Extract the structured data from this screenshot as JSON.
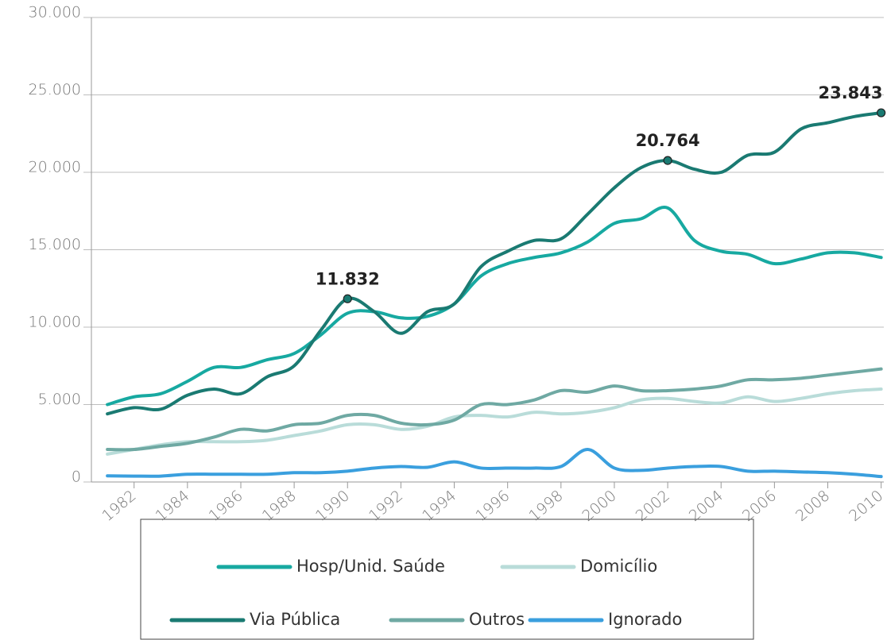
{
  "chart_data": {
    "type": "line",
    "x": [
      1981,
      1982,
      1983,
      1984,
      1985,
      1986,
      1987,
      1988,
      1989,
      1990,
      1991,
      1992,
      1993,
      1994,
      1995,
      1996,
      1997,
      1998,
      1999,
      2000,
      2001,
      2002,
      2003,
      2004,
      2005,
      2006,
      2007,
      2008,
      2009,
      2010
    ],
    "series": [
      {
        "name": "Hosp/Unid. Saúde",
        "color": "#17a9a1",
        "values": [
          5000,
          5500,
          5700,
          6500,
          7400,
          7400,
          7900,
          8300,
          9500,
          10900,
          11000,
          10600,
          10700,
          11500,
          13300,
          14100,
          14500,
          14800,
          15500,
          16700,
          17000,
          17700,
          15600,
          14900,
          14700,
          14100,
          14400,
          14800,
          14800,
          14500
        ]
      },
      {
        "name": "Domicílio",
        "color": "#b9dcd9",
        "values": [
          1800,
          2100,
          2400,
          2600,
          2600,
          2600,
          2700,
          3000,
          3300,
          3700,
          3700,
          3400,
          3600,
          4200,
          4300,
          4200,
          4500,
          4400,
          4500,
          4800,
          5300,
          5400,
          5200,
          5100,
          5500,
          5200,
          5400,
          5700,
          5900,
          6000
        ]
      },
      {
        "name": "Via Pública",
        "color": "#1a7a72",
        "values": [
          4400,
          4800,
          4700,
          5600,
          6000,
          5700,
          6800,
          7500,
          9800,
          11832,
          11000,
          9600,
          11000,
          11500,
          13900,
          14900,
          15600,
          15700,
          17300,
          19000,
          20300,
          20764,
          20200,
          20000,
          21100,
          21300,
          22800,
          23200,
          23600,
          23843
        ]
      },
      {
        "name": "Outros",
        "color": "#6fa9a3",
        "values": [
          2100,
          2100,
          2300,
          2500,
          2900,
          3400,
          3300,
          3700,
          3800,
          4300,
          4300,
          3800,
          3700,
          4000,
          5000,
          5000,
          5300,
          5900,
          5800,
          6200,
          5900,
          5900,
          6000,
          6200,
          6600,
          6600,
          6700,
          6900,
          7100,
          7300
        ]
      },
      {
        "name": "Ignorado",
        "color": "#3a9fde",
        "values": [
          400,
          380,
          380,
          500,
          500,
          500,
          500,
          600,
          600,
          700,
          900,
          1000,
          950,
          1300,
          900,
          900,
          900,
          1000,
          2100,
          900,
          750,
          900,
          1000,
          1000,
          700,
          700,
          650,
          600,
          500,
          350
        ]
      }
    ],
    "annotations": [
      {
        "x": 1990,
        "y": 11832,
        "label": "11.832"
      },
      {
        "x": 2002,
        "y": 20764,
        "label": "20.764"
      },
      {
        "x": 2010,
        "y": 23843,
        "label": "23.843"
      }
    ],
    "xlim": [
      1980.4,
      2010.1
    ],
    "xticks": [
      1982,
      1984,
      1986,
      1988,
      1990,
      1992,
      1994,
      1996,
      1998,
      2000,
      2002,
      2004,
      2006,
      2008,
      2010
    ],
    "ylim": [
      0,
      30000
    ],
    "yticks": [
      {
        "value": 0,
        "label": "0"
      },
      {
        "value": 5000,
        "label": "5.000"
      },
      {
        "value": 10000,
        "label": "10.000"
      },
      {
        "value": 15000,
        "label": "15.000"
      },
      {
        "value": 20000,
        "label": "20.000"
      },
      {
        "value": 25000,
        "label": "25.000"
      },
      {
        "value": 30000,
        "label": "30.000"
      }
    ],
    "grid": true
  }
}
